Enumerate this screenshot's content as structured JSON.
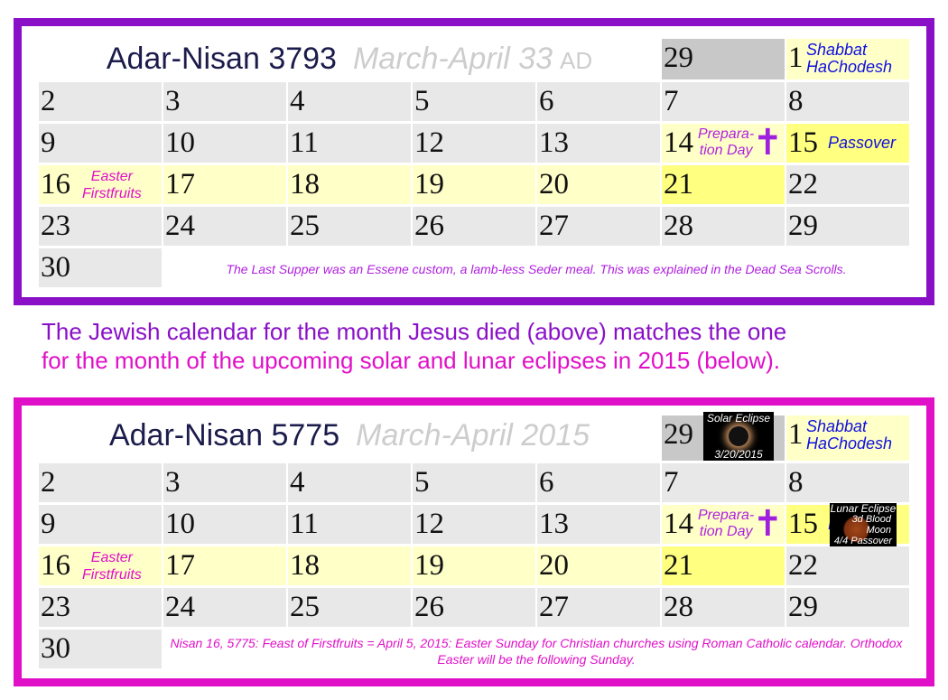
{
  "colors": {
    "frame_top": "#8a10c8",
    "frame_bottom": "#e010c8",
    "note_blue": "#1010e0",
    "note_purple": "#b020e0",
    "note_magenta": "#e010c8",
    "cell_gray": "#e8e8e8",
    "cell_dark_gray": "#c8c8c8",
    "cell_light_yellow": "#ffffc8",
    "cell_yellow": "#ffff80"
  },
  "calendars": [
    {
      "title_hebrew": "Adar-Nisan 3793",
      "title_gregorian": "March-April 33",
      "title_suffix": "AD",
      "footer": "The Last Supper was an Essene custom, a lamb-less Seder meal. This was explained in the Dead Sea Scrolls.",
      "footer_color": "#b020e0",
      "eclipse_solar": null,
      "eclipse_lunar": null
    },
    {
      "title_hebrew": "Adar-Nisan 5775",
      "title_gregorian": "March-April 2015",
      "title_suffix": "",
      "footer": "Nisan 16, 5775: Feast of Firstfruits = April 5, 2015: Easter Sunday for Christian churches using Roman Catholic calendar. Orthodox Easter will be the following Sunday.",
      "footer_color": "#e010c8",
      "eclipse_solar": {
        "title": "Solar Eclipse",
        "date": "3/20/2015"
      },
      "eclipse_lunar": {
        "title": "Lunar Eclipse",
        "line1": "3d Blood",
        "line2": "Moon",
        "line3": "4/4 Passover"
      }
    }
  ],
  "header_cells": [
    {
      "day": "29",
      "bg": "d"
    },
    {
      "day": "1",
      "bg": "y",
      "note": [
        "Shabbat",
        "HaChodesh"
      ],
      "note_color": "blue"
    }
  ],
  "rows": [
    [
      {
        "day": "2",
        "bg": "g"
      },
      {
        "day": "3",
        "bg": "g"
      },
      {
        "day": "4",
        "bg": "g"
      },
      {
        "day": "5",
        "bg": "g"
      },
      {
        "day": "6",
        "bg": "g"
      },
      {
        "day": "7",
        "bg": "g"
      },
      {
        "day": "8",
        "bg": "g"
      }
    ],
    [
      {
        "day": "9",
        "bg": "g"
      },
      {
        "day": "10",
        "bg": "g"
      },
      {
        "day": "11",
        "bg": "g"
      },
      {
        "day": "12",
        "bg": "g"
      },
      {
        "day": "13",
        "bg": "g"
      },
      {
        "day": "14",
        "bg": "y",
        "note": [
          "Prepara-",
          "tion Day"
        ],
        "note_color": "purple",
        "icon": "cross-icon"
      },
      {
        "day": "15",
        "bg": "b",
        "note": [
          "Passover"
        ],
        "note_color": "blue"
      }
    ],
    [
      {
        "day": "16",
        "bg": "y",
        "note": [
          "Easter",
          "Firstfruits"
        ],
        "note_color": "magenta"
      },
      {
        "day": "17",
        "bg": "y"
      },
      {
        "day": "18",
        "bg": "y"
      },
      {
        "day": "19",
        "bg": "y"
      },
      {
        "day": "20",
        "bg": "y"
      },
      {
        "day": "21",
        "bg": "b"
      },
      {
        "day": "22",
        "bg": "g"
      }
    ],
    [
      {
        "day": "23",
        "bg": "g"
      },
      {
        "day": "24",
        "bg": "g"
      },
      {
        "day": "25",
        "bg": "g"
      },
      {
        "day": "26",
        "bg": "g"
      },
      {
        "day": "27",
        "bg": "g"
      },
      {
        "day": "28",
        "bg": "g"
      },
      {
        "day": "29",
        "bg": "g"
      }
    ],
    [
      {
        "day": "30",
        "bg": "g"
      }
    ]
  ],
  "caption": {
    "line1": "The Jewish calendar for the month Jesus died (above) matches the one",
    "line2": "for the month of the upcoming solar and lunar eclipses in 2015 (below).",
    "line1_color": "#8a10c8",
    "line2_color": "#e010c8"
  }
}
